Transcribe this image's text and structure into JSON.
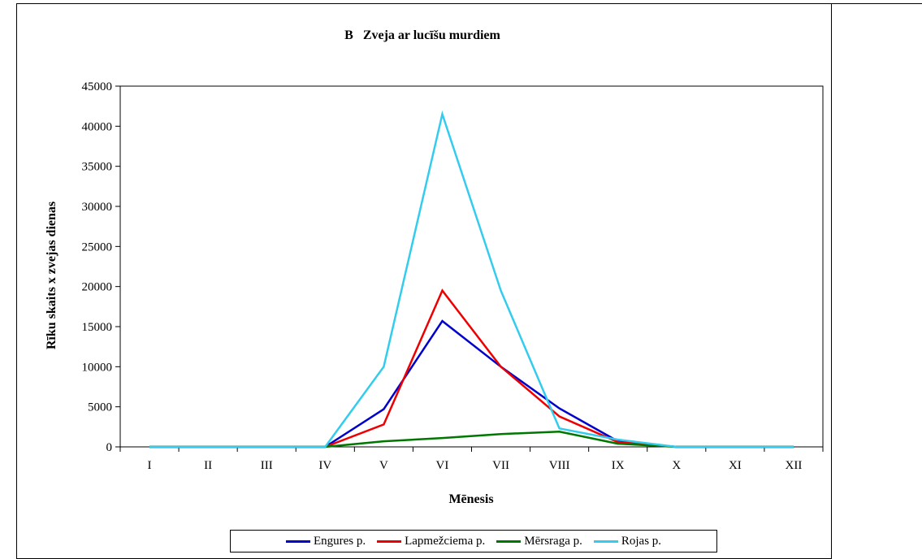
{
  "chart_data": {
    "type": "line",
    "title": "B   Zveja ar lucīšu murdiem",
    "xlabel": "Mēnesis",
    "ylabel": "Rīku skaits x zvejas dienas",
    "categories": [
      "I",
      "II",
      "III",
      "IV",
      "V",
      "VI",
      "VII",
      "VIII",
      "IX",
      "X",
      "XI",
      "XII"
    ],
    "ylim": [
      0,
      45000
    ],
    "yticks": [
      0,
      5000,
      10000,
      15000,
      20000,
      25000,
      30000,
      35000,
      40000,
      45000
    ],
    "legend_position": "bottom",
    "grid": false,
    "series": [
      {
        "name": "Engures p.",
        "color": "#0000cc",
        "values": [
          0,
          0,
          0,
          0,
          4700,
          15700,
          10000,
          4800,
          700,
          0,
          0,
          0
        ]
      },
      {
        "name": "Lapmežciema p.",
        "color": "#ee0000",
        "values": [
          0,
          0,
          0,
          0,
          2800,
          19500,
          10000,
          3800,
          600,
          0,
          0,
          0
        ]
      },
      {
        "name": "Mērsraga p.",
        "color": "#007700",
        "values": [
          0,
          0,
          0,
          0,
          700,
          1100,
          1600,
          1900,
          400,
          0,
          0,
          0
        ]
      },
      {
        "name": "Rojas p.",
        "color": "#33ccee",
        "values": [
          0,
          0,
          0,
          0,
          10000,
          41500,
          19500,
          2300,
          900,
          0,
          0,
          0
        ]
      }
    ]
  }
}
